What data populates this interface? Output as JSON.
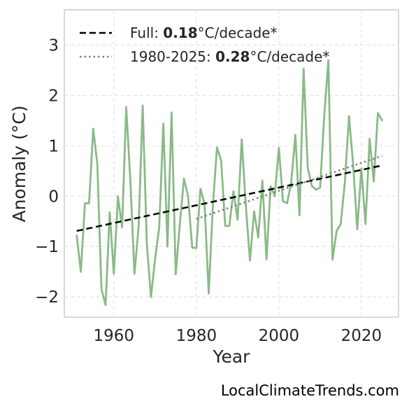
{
  "chart_data": {
    "type": "line",
    "xlabel": "Year",
    "ylabel": "Anomaly (°C)",
    "xlim": [
      1948,
      2029
    ],
    "ylim": [
      -2.4,
      3.7
    ],
    "xticks": [
      1960,
      1980,
      2000,
      2020
    ],
    "yticks": [
      -2,
      -1,
      0,
      1,
      2,
      3
    ],
    "ytick_labels": [
      "−2",
      "−1",
      "0",
      "1",
      "2",
      "3"
    ],
    "grid": true,
    "legend_position": "top-left",
    "series": [
      {
        "kind": "observed",
        "color": "#8aba87",
        "x": [
          1951,
          1952,
          1953,
          1954,
          1955,
          1956,
          1957,
          1958,
          1959,
          1960,
          1961,
          1962,
          1963,
          1964,
          1965,
          1966,
          1967,
          1968,
          1969,
          1970,
          1971,
          1972,
          1973,
          1974,
          1975,
          1976,
          1977,
          1978,
          1979,
          1980,
          1981,
          1982,
          1983,
          1984,
          1985,
          1986,
          1987,
          1988,
          1989,
          1990,
          1991,
          1992,
          1993,
          1994,
          1995,
          1996,
          1997,
          1998,
          1999,
          2000,
          2001,
          2002,
          2003,
          2004,
          2005,
          2006,
          2007,
          2008,
          2009,
          2010,
          2011,
          2012,
          2013,
          2014,
          2015,
          2016,
          2017,
          2018,
          2019,
          2020,
          2021,
          2022,
          2023,
          2024,
          2025
        ],
        "y": [
          -0.78,
          -1.5,
          -0.14,
          -0.14,
          1.34,
          0.64,
          -1.84,
          -2.16,
          -0.32,
          -1.54,
          0.0,
          -0.62,
          1.77,
          0.32,
          -1.54,
          -0.62,
          1.8,
          -0.95,
          -2.0,
          -1.24,
          -0.62,
          1.44,
          -1.0,
          1.66,
          -1.55,
          -0.55,
          0.35,
          0.0,
          -1.02,
          -1.03,
          0.15,
          -0.17,
          -1.93,
          -0.2,
          0.97,
          0.71,
          -0.59,
          -0.59,
          0.1,
          -0.47,
          1.13,
          -0.2,
          -1.28,
          -0.3,
          -0.82,
          0.31,
          -1.25,
          0.2,
          0.0,
          0.96,
          -0.1,
          -0.14,
          0.28,
          1.22,
          -0.38,
          2.53,
          0.56,
          0.2,
          0.13,
          0.17,
          1.6,
          2.7,
          -1.26,
          -0.69,
          -0.55,
          0.28,
          1.59,
          0.63,
          -0.66,
          0.55,
          -0.55,
          1.14,
          0.29,
          1.65,
          1.51
        ]
      },
      {
        "kind": "trend-full",
        "color": "#000000",
        "dash": "dashed",
        "x": [
          1951,
          2025
        ],
        "y": [
          -0.69,
          0.61
        ]
      },
      {
        "kind": "trend-recent",
        "color": "#808080",
        "dash": "dotted",
        "x": [
          1980,
          2025
        ],
        "y": [
          -0.45,
          0.8
        ]
      }
    ]
  },
  "legend": [
    {
      "prefix": "Full: ",
      "value": "0.18",
      "suffix": "°C/decade*"
    },
    {
      "prefix": "1980-2025: ",
      "value": "0.28",
      "suffix": "°C/decade*"
    }
  ],
  "credit": "LocalClimateTrends.com"
}
